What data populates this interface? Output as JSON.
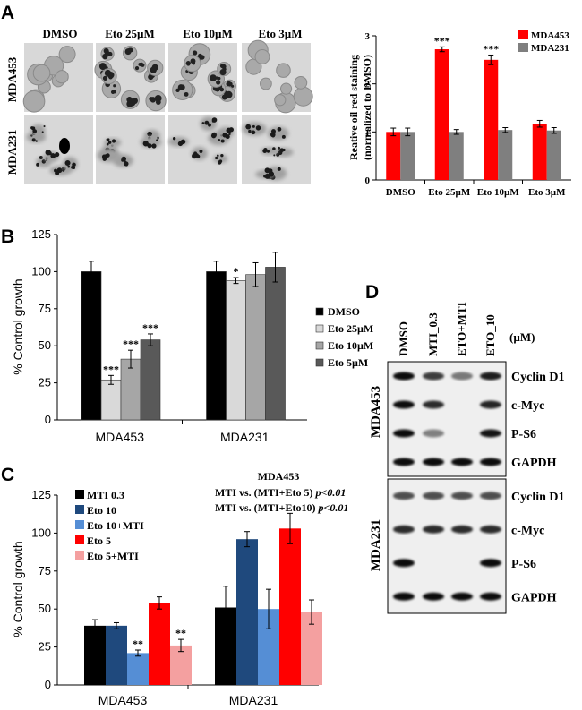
{
  "chart_data": [
    {
      "panel": "A",
      "type": "bar",
      "ylabel_line1": "Reative oil red staining",
      "ylabel_line2": "(normalized to DMSO)",
      "ylim": [
        0,
        3
      ],
      "yticks": [
        "0",
        "1",
        "2",
        "3"
      ],
      "categories": [
        "DMSO",
        "Eto 25µM",
        "Eto 10µM",
        "Eto 3µM"
      ],
      "series": [
        {
          "name": "MDA453",
          "color": "#ff0000",
          "values": [
            1.0,
            2.72,
            2.5,
            1.17
          ],
          "errors": [
            0.08,
            0.05,
            0.1,
            0.07
          ],
          "sig": [
            "",
            "***",
            "***",
            ""
          ]
        },
        {
          "name": "MDA231",
          "color": "#7f7f7f",
          "values": [
            1.0,
            1.0,
            1.04,
            1.03
          ],
          "errors": [
            0.08,
            0.05,
            0.05,
            0.06
          ],
          "sig": [
            "",
            "",
            "",
            ""
          ]
        }
      ],
      "image_columns": [
        "DMSO",
        "Eto 25µM",
        "Eto 10µM",
        "Eto 3µM"
      ],
      "image_rows": [
        "MDA453",
        "MDA231"
      ]
    },
    {
      "panel": "B",
      "type": "bar",
      "ylabel": "% Control growth",
      "ylim": [
        0,
        125
      ],
      "yticks": [
        "0",
        "25",
        "50",
        "75",
        "100",
        "125"
      ],
      "categories": [
        "MDA453",
        "MDA231"
      ],
      "series": [
        {
          "name": "DMSO",
          "color": "#000000",
          "values": [
            100,
            100
          ],
          "errors": [
            7,
            7
          ],
          "sig": [
            "",
            ""
          ]
        },
        {
          "name": "Eto 25µM",
          "color": "#d9d9d9",
          "values": [
            27,
            94
          ],
          "errors": [
            3,
            2
          ],
          "sig": [
            "***",
            "*"
          ]
        },
        {
          "name": "Eto 10µM",
          "color": "#a6a6a6",
          "values": [
            41,
            98
          ],
          "errors": [
            6,
            8
          ],
          "sig": [
            "***",
            ""
          ]
        },
        {
          "name": "Eto 5µM",
          "color": "#595959",
          "values": [
            54,
            103
          ],
          "errors": [
            4,
            10
          ],
          "sig": [
            "***",
            ""
          ]
        }
      ]
    },
    {
      "panel": "C",
      "type": "bar",
      "ylabel": "% Control growth",
      "ylim": [
        0,
        125
      ],
      "yticks": [
        "0",
        "25",
        "50",
        "75",
        "100",
        "125"
      ],
      "categories": [
        "MDA453",
        "MDA231"
      ],
      "annotation_title": "MDA453",
      "annotation_lines": [
        {
          "text": "MTI vs. (MTI+Eto 5) ",
          "p": "p<0.01"
        },
        {
          "text": "MTI vs. (MTI+Eto10) ",
          "p": "p<0.01"
        }
      ],
      "series": [
        {
          "name": "MTI 0.3",
          "color": "#000000",
          "values": [
            39,
            51
          ],
          "errors": [
            4,
            14
          ],
          "sig": [
            "",
            ""
          ]
        },
        {
          "name": "Eto 10",
          "color": "#1f497d",
          "values": [
            39,
            96
          ],
          "errors": [
            2,
            5
          ],
          "sig": [
            "",
            ""
          ]
        },
        {
          "name": "Eto 10+MTI",
          "color": "#558ed5",
          "values": [
            21,
            50
          ],
          "errors": [
            2,
            13
          ],
          "sig": [
            "**",
            ""
          ]
        },
        {
          "name": "Eto 5",
          "color": "#ff0000",
          "values": [
            54,
            103
          ],
          "errors": [
            4,
            10
          ],
          "sig": [
            "",
            ""
          ]
        },
        {
          "name": "Eto 5+MTI",
          "color": "#f4a0a0",
          "values": [
            26,
            48
          ],
          "errors": [
            4,
            8
          ],
          "sig": [
            "**",
            ""
          ]
        }
      ]
    },
    {
      "panel": "D",
      "type": "table",
      "lanes": [
        "DMSO",
        "MTI_0.3",
        "ETO+MTI",
        "ETO_10"
      ],
      "unit": "(µM)",
      "blocks": [
        {
          "cell_line": "MDA453",
          "rows": [
            "Cyclin D1",
            "c-Myc",
            "P-S6",
            "GAPDH"
          ]
        },
        {
          "cell_line": "MDA231",
          "rows": [
            "Cyclin D1",
            "c-Myc",
            "P-S6",
            "GAPDH"
          ]
        }
      ]
    }
  ],
  "panel_labels": [
    "A",
    "B",
    "C",
    "D"
  ]
}
